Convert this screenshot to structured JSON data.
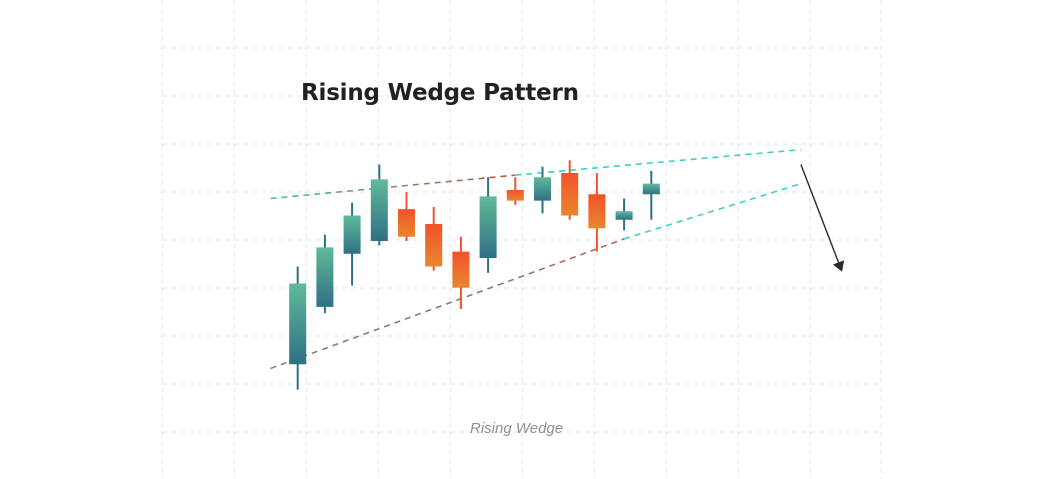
{
  "chart_data": {
    "type": "candlestick",
    "title": "Rising Wedge Pattern",
    "caption": "Rising Wedge",
    "grid": true,
    "ylim": [
      0,
      100
    ],
    "candles": [
      {
        "index": 1,
        "open": 27.0,
        "close": 46.0,
        "high": 50.0,
        "low": 21.0,
        "direction": "up"
      },
      {
        "index": 2,
        "open": 40.5,
        "close": 54.5,
        "high": 57.5,
        "low": 39.0,
        "direction": "up"
      },
      {
        "index": 3,
        "open": 53.0,
        "close": 62.0,
        "high": 65.0,
        "low": 45.5,
        "direction": "up"
      },
      {
        "index": 4,
        "open": 56.0,
        "close": 70.5,
        "high": 74.0,
        "low": 55.0,
        "direction": "up"
      },
      {
        "index": 5,
        "open": 63.5,
        "close": 57.0,
        "high": 67.5,
        "low": 56.0,
        "direction": "down"
      },
      {
        "index": 6,
        "open": 60.0,
        "close": 50.0,
        "high": 64.0,
        "low": 49.0,
        "direction": "down"
      },
      {
        "index": 7,
        "open": 53.5,
        "close": 45.0,
        "high": 57.0,
        "low": 40.0,
        "direction": "down"
      },
      {
        "index": 8,
        "open": 52.0,
        "close": 66.5,
        "high": 71.0,
        "low": 48.5,
        "direction": "up"
      },
      {
        "index": 9,
        "open": 68.0,
        "close": 65.5,
        "high": 71.0,
        "low": 64.5,
        "direction": "down"
      },
      {
        "index": 10,
        "open": 65.5,
        "close": 71.0,
        "high": 73.5,
        "low": 62.5,
        "direction": "up"
      },
      {
        "index": 11,
        "open": 72.0,
        "close": 62.0,
        "high": 75.0,
        "low": 61.0,
        "direction": "down"
      },
      {
        "index": 12,
        "open": 67.0,
        "close": 59.0,
        "high": 72.0,
        "low": 53.5,
        "direction": "down"
      },
      {
        "index": 13,
        "open": 61.0,
        "close": 63.0,
        "high": 66.0,
        "low": 58.5,
        "direction": "up"
      },
      {
        "index": 14,
        "open": 67.0,
        "close": 69.5,
        "high": 72.5,
        "low": 61.0,
        "direction": "up"
      }
    ],
    "trendlines": {
      "upper": [
        {
          "x": 0,
          "y": 66.0
        },
        {
          "x": 9,
          "y": 71.5
        }
      ],
      "lower": [
        {
          "x": 0,
          "y": 26.0
        },
        {
          "x": 13,
          "y": 56.5
        }
      ],
      "upper_extension": [
        {
          "x": 9,
          "y": 71.5
        },
        {
          "x": 19.5,
          "y": 77.5
        }
      ],
      "lower_extension": [
        {
          "x": 13,
          "y": 56.5
        },
        {
          "x": 19.5,
          "y": 69.5
        }
      ]
    },
    "breakdown_arrow": {
      "from": {
        "x": 19.5,
        "y": 74.0
      },
      "to": {
        "x": 21.0,
        "y": 49.0
      }
    }
  },
  "colors": {
    "bull_top": "#5fbb98",
    "bull_bottom": "#2f6f86",
    "bear_top": "#f2522b",
    "bear_bottom": "#e9862e",
    "grid": "#d9eaf0",
    "upper_line_start": "#3ec6a1",
    "upper_line_end": "#c3533d",
    "lower_line_start": "#6e8a84",
    "lower_line_end": "#b9664e",
    "extension_line": "#3ecfc0",
    "arrow": "#2a2a2a",
    "title": "#1f2123",
    "caption": "#8d9196"
  }
}
